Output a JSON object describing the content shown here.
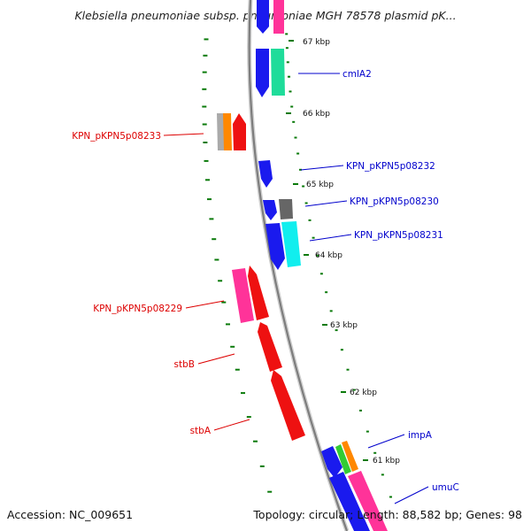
{
  "title": "Klebsiella pneumoniae subsp. pneumoniae MGH 78578 plasmid pK...",
  "accession": "Accession: NC_009651",
  "summary": "Topology: circular; Length: 88,582 bp; Genes: 98",
  "colors": {
    "forward_label": "#0000cc",
    "reverse_label": "#dd0000",
    "backbone": "#8c8c8c",
    "gc_tick": "#0a7a0a"
  },
  "ticks": [
    {
      "label": "67 kbp"
    },
    {
      "label": "66 kbp"
    },
    {
      "label": "65 kbp"
    },
    {
      "label": "64 kbp"
    },
    {
      "label": "63 kbp"
    },
    {
      "label": "62 kbp"
    },
    {
      "label": "61 kbp"
    }
  ],
  "gene_labels": [
    {
      "text": "cmlA2",
      "strand": "forward"
    },
    {
      "text": "KPN_pKPN5p08233",
      "strand": "reverse"
    },
    {
      "text": "KPN_pKPN5p08232",
      "strand": "forward"
    },
    {
      "text": "KPN_pKPN5p08230",
      "strand": "forward"
    },
    {
      "text": "KPN_pKPN5p08231",
      "strand": "forward"
    },
    {
      "text": "KPN_pKPN5p08229",
      "strand": "reverse"
    },
    {
      "text": "stbB",
      "strand": "reverse"
    },
    {
      "text": "stbA",
      "strand": "reverse"
    },
    {
      "text": "impA",
      "strand": "forward"
    },
    {
      "text": "umuC",
      "strand": "forward"
    }
  ],
  "feature_colors": [
    "#1a1aee",
    "#1fdc9a",
    "#ff3399",
    "#ee1111",
    "#ff8800",
    "#aaaaaa",
    "#666666",
    "#11eeee",
    "#33cc33"
  ]
}
